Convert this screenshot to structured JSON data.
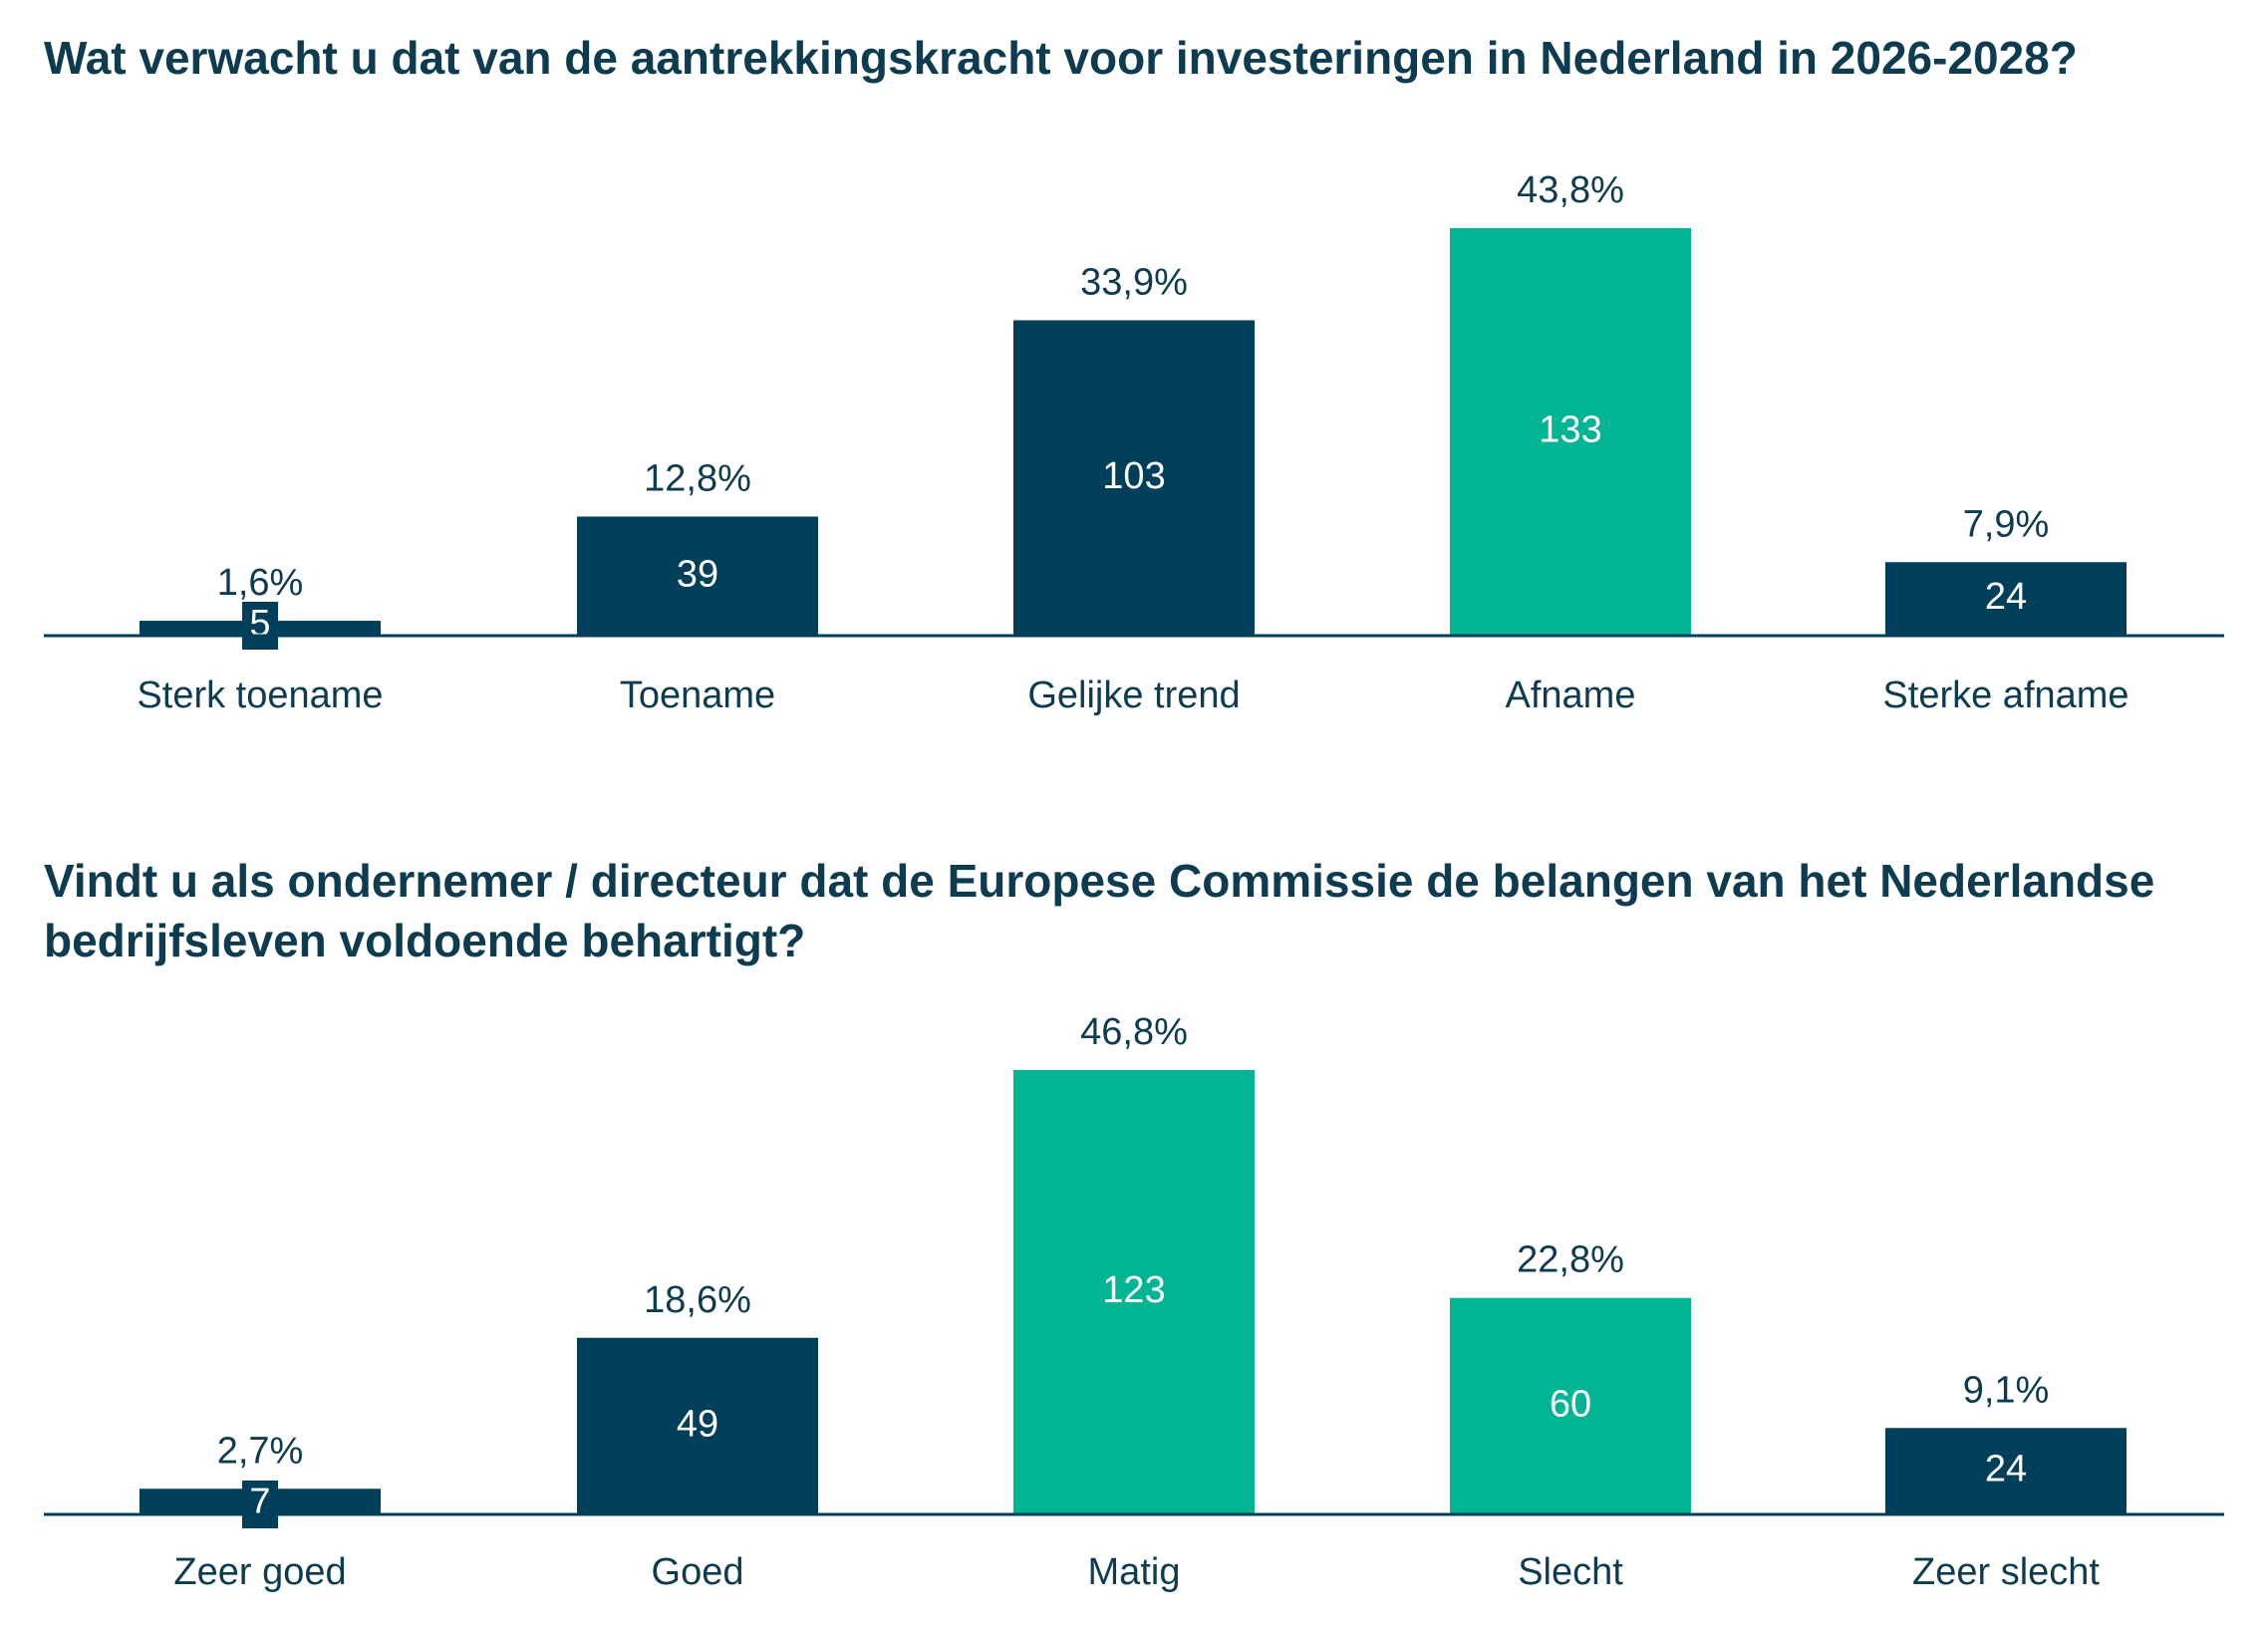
{
  "chart_data": [
    {
      "type": "bar",
      "title": "Wat verwacht u dat van de aantrekkingskracht voor investeringen in Nederland in 2026-2028?",
      "categories": [
        "Sterk toename",
        "Toename",
        "Gelijke trend",
        "Afname",
        "Sterke afname"
      ],
      "values": [
        1.6,
        12.8,
        33.9,
        43.8,
        7.9
      ],
      "value_labels": [
        "1,6%",
        "12,8%",
        "33,9%",
        "43,8%",
        "7,9%"
      ],
      "counts": [
        5,
        39,
        103,
        133,
        24
      ],
      "colors": [
        "#003f5a",
        "#003f5a",
        "#003f5a",
        "#00b494",
        "#003f5a"
      ]
    },
    {
      "type": "bar",
      "title": "Vindt u als ondernemer / directeur dat de Europese Commissie de belangen van het Nederlandse bedrijfsleven voldoende behartigt?",
      "categories": [
        "Zeer goed",
        "Goed",
        "Matig",
        "Slecht",
        "Zeer slecht"
      ],
      "values": [
        2.7,
        18.6,
        46.8,
        22.8,
        9.1
      ],
      "value_labels": [
        "2,7%",
        "18,6%",
        "46,8%",
        "22,8%",
        "9,1%"
      ],
      "counts": [
        7,
        49,
        123,
        60,
        24
      ],
      "colors": [
        "#003f5a",
        "#003f5a",
        "#00b494",
        "#00b494",
        "#003f5a"
      ]
    }
  ]
}
